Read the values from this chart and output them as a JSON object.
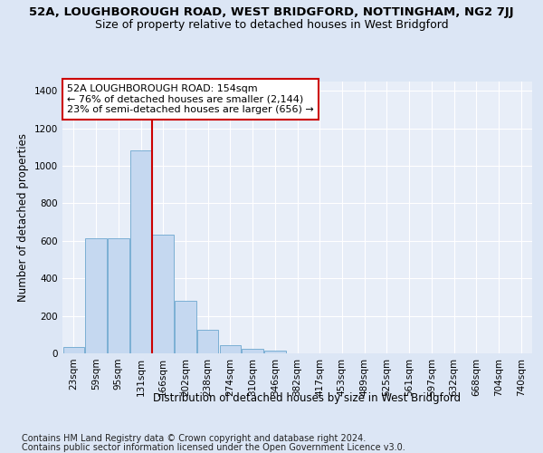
{
  "title": "52A, LOUGHBOROUGH ROAD, WEST BRIDGFORD, NOTTINGHAM, NG2 7JJ",
  "subtitle": "Size of property relative to detached houses in West Bridgford",
  "xlabel": "Distribution of detached houses by size in West Bridgford",
  "ylabel": "Number of detached properties",
  "categories": [
    "23sqm",
    "59sqm",
    "95sqm",
    "131sqm",
    "166sqm",
    "202sqm",
    "238sqm",
    "274sqm",
    "310sqm",
    "346sqm",
    "382sqm",
    "417sqm",
    "453sqm",
    "489sqm",
    "525sqm",
    "561sqm",
    "597sqm",
    "632sqm",
    "668sqm",
    "704sqm",
    "740sqm"
  ],
  "values": [
    32,
    615,
    615,
    1085,
    635,
    280,
    125,
    45,
    25,
    15,
    0,
    0,
    0,
    0,
    0,
    0,
    0,
    0,
    0,
    0,
    0
  ],
  "bar_color": "#c5d8f0",
  "bar_edge_color": "#7bafd4",
  "vline_x": 3.5,
  "vline_color": "#cc0000",
  "annotation_text": "52A LOUGHBOROUGH ROAD: 154sqm\n← 76% of detached houses are smaller (2,144)\n23% of semi-detached houses are larger (656) →",
  "annotation_box_color": "#ffffff",
  "annotation_box_edge": "#cc0000",
  "ylim": [
    0,
    1450
  ],
  "yticks": [
    0,
    200,
    400,
    600,
    800,
    1000,
    1200,
    1400
  ],
  "bg_color": "#dce6f5",
  "plot_bg_color": "#e8eef8",
  "footer1": "Contains HM Land Registry data © Crown copyright and database right 2024.",
  "footer2": "Contains public sector information licensed under the Open Government Licence v3.0.",
  "title_fontsize": 9.5,
  "subtitle_fontsize": 9,
  "axis_label_fontsize": 8.5,
  "tick_fontsize": 7.5,
  "annotation_fontsize": 8,
  "footer_fontsize": 7
}
